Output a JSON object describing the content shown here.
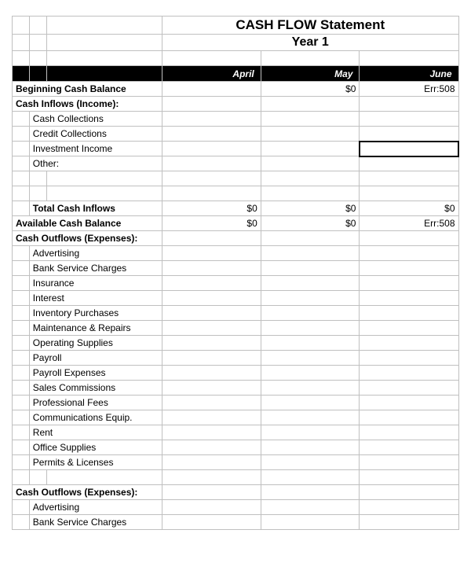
{
  "title": "CASH FLOW Statement",
  "subtitle": "Year 1",
  "months": {
    "m1": "April",
    "m2": "May",
    "m3": "June"
  },
  "rows": {
    "begBal": {
      "label": "Beginning Cash Balance",
      "m1": "",
      "m2": "$0",
      "m3": "Err:508"
    },
    "inflowsHeader": {
      "label": "Cash Inflows (Income):"
    },
    "cashColl": {
      "label": "Cash Collections"
    },
    "credColl": {
      "label": "Credit Collections"
    },
    "invInc": {
      "label": "Investment Income"
    },
    "other": {
      "label": "Other:"
    },
    "totalInflows": {
      "label": "Total Cash Inflows",
      "m1": "$0",
      "m2": "$0",
      "m3": "$0"
    },
    "availBal": {
      "label": "Available Cash Balance",
      "m1": "$0",
      "m2": "$0",
      "m3": "Err:508"
    },
    "outflowsHeader": {
      "label": "Cash Outflows (Expenses):"
    },
    "adv": {
      "label": "Advertising"
    },
    "bank": {
      "label": "Bank Service Charges"
    },
    "ins": {
      "label": "Insurance"
    },
    "int": {
      "label": "Interest"
    },
    "inv": {
      "label": "Inventory Purchases"
    },
    "maint": {
      "label": "Maintenance & Repairs"
    },
    "opsup": {
      "label": "Operating Supplies"
    },
    "payroll": {
      "label": "Payroll"
    },
    "payexp": {
      "label": "Payroll Expenses"
    },
    "sales": {
      "label": "Sales Commissions"
    },
    "prof": {
      "label": "Professional Fees"
    },
    "comm": {
      "label": "Communications Equip."
    },
    "rent": {
      "label": "Rent"
    },
    "office": {
      "label": "Office Supplies"
    },
    "permits": {
      "label": "Permits & Licenses"
    },
    "outflowsHeader2": {
      "label": "Cash Outflows (Expenses):"
    },
    "adv2": {
      "label": "Advertising"
    },
    "bank2": {
      "label": "Bank Service Charges"
    }
  },
  "colors": {
    "gridline": "#c0c0c0",
    "headerBg": "#000000",
    "headerText": "#ffffff",
    "background": "#ffffff"
  },
  "typography": {
    "font_family": "Arial",
    "title_fontsize": 17,
    "subtitle_fontsize": 16,
    "cell_fontsize": 12
  },
  "selected_cell": {
    "row": "invInc",
    "col": "m3"
  }
}
